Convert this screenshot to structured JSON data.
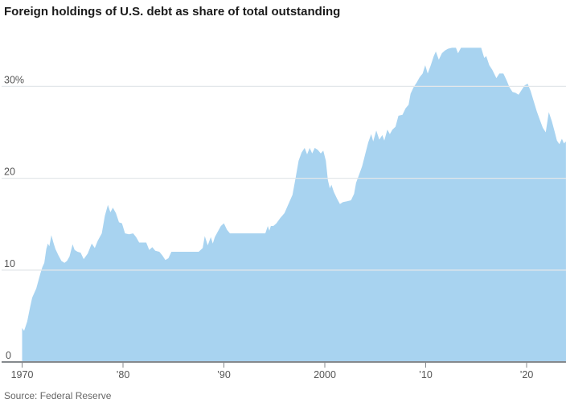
{
  "page": {
    "title": "Foreign holdings of U.S. debt as share of total outstanding",
    "source": "Source: Federal Reserve"
  },
  "colors": {
    "background": "#ffffff",
    "area_fill": "#a8d3f0",
    "gridline": "#e3e7ea",
    "axis_line": "#85898d",
    "tick_mark": "#85898d",
    "tick_label": "#555555",
    "title_text": "#1b1b1b",
    "source_text": "#666666"
  },
  "chart_data": {
    "type": "area",
    "title": "Foreign holdings of U.S. debt as share of total outstanding",
    "xlabel": "",
    "ylabel": "",
    "grid": true,
    "legend": false,
    "x_range": [
      1970,
      2023.9
    ],
    "ylim": [
      0,
      35
    ],
    "y_ticks": [
      {
        "value": 0,
        "label": "0"
      },
      {
        "value": 10,
        "label": "10"
      },
      {
        "value": 20,
        "label": "20"
      },
      {
        "value": 30,
        "label": "30%"
      }
    ],
    "x_ticks": [
      {
        "year": 1970,
        "label": "1970"
      },
      {
        "year": 1980,
        "label": "’80"
      },
      {
        "year": 1990,
        "label": "’90"
      },
      {
        "year": 2000,
        "label": "2000"
      },
      {
        "year": 2010,
        "label": "’10"
      },
      {
        "year": 2020,
        "label": "’20"
      }
    ],
    "series": [
      {
        "name": "Foreign holdings share of total U.S. debt outstanding (%)",
        "points": [
          [
            1970.0,
            3.7
          ],
          [
            1970.2,
            3.4
          ],
          [
            1970.5,
            4.4
          ],
          [
            1970.8,
            6.0
          ],
          [
            1971.0,
            7.0
          ],
          [
            1971.4,
            8.0
          ],
          [
            1971.8,
            9.6
          ],
          [
            1972.0,
            10.3
          ],
          [
            1972.2,
            10.8
          ],
          [
            1972.4,
            12.3
          ],
          [
            1972.55,
            12.9
          ],
          [
            1972.7,
            12.6
          ],
          [
            1972.9,
            13.8
          ],
          [
            1973.1,
            13.0
          ],
          [
            1973.3,
            12.3
          ],
          [
            1973.6,
            11.6
          ],
          [
            1973.9,
            11.0
          ],
          [
            1974.2,
            10.8
          ],
          [
            1974.45,
            11.0
          ],
          [
            1974.7,
            11.5
          ],
          [
            1975.0,
            12.8
          ],
          [
            1975.2,
            12.2
          ],
          [
            1975.5,
            12.0
          ],
          [
            1975.8,
            11.9
          ],
          [
            1976.1,
            11.2
          ],
          [
            1976.5,
            11.8
          ],
          [
            1976.9,
            12.9
          ],
          [
            1977.2,
            12.4
          ],
          [
            1977.5,
            13.2
          ],
          [
            1977.9,
            14.0
          ],
          [
            1978.2,
            15.9
          ],
          [
            1978.5,
            17.1
          ],
          [
            1978.75,
            16.3
          ],
          [
            1979.0,
            16.8
          ],
          [
            1979.3,
            16.2
          ],
          [
            1979.6,
            15.2
          ],
          [
            1979.9,
            15.1
          ],
          [
            1980.2,
            14.0
          ],
          [
            1980.6,
            13.9
          ],
          [
            1981.0,
            14.0
          ],
          [
            1981.3,
            13.6
          ],
          [
            1981.6,
            13.0
          ],
          [
            1982.0,
            13.0
          ],
          [
            1982.3,
            13.0
          ],
          [
            1982.6,
            12.2
          ],
          [
            1982.9,
            12.5
          ],
          [
            1983.2,
            12.1
          ],
          [
            1983.6,
            12.0
          ],
          [
            1983.9,
            11.6
          ],
          [
            1984.2,
            11.1
          ],
          [
            1984.5,
            11.3
          ],
          [
            1984.8,
            12.0
          ],
          [
            1985.5,
            12.0
          ],
          [
            1986.5,
            12.0
          ],
          [
            1987.5,
            12.0
          ],
          [
            1987.9,
            12.4
          ],
          [
            1988.1,
            13.7
          ],
          [
            1988.4,
            12.7
          ],
          [
            1988.7,
            13.6
          ],
          [
            1988.9,
            12.9
          ],
          [
            1989.1,
            13.6
          ],
          [
            1989.4,
            14.2
          ],
          [
            1989.7,
            14.8
          ],
          [
            1990.0,
            15.1
          ],
          [
            1990.3,
            14.4
          ],
          [
            1990.6,
            14.0
          ],
          [
            1991.0,
            14.0
          ],
          [
            1992.0,
            14.0
          ],
          [
            1993.0,
            14.0
          ],
          [
            1994.1,
            14.0
          ],
          [
            1994.35,
            14.8
          ],
          [
            1994.5,
            14.3
          ],
          [
            1994.65,
            14.8
          ],
          [
            1994.9,
            14.8
          ],
          [
            1995.2,
            15.1
          ],
          [
            1995.6,
            15.7
          ],
          [
            1996.0,
            16.2
          ],
          [
            1996.4,
            17.2
          ],
          [
            1996.8,
            18.2
          ],
          [
            1997.1,
            20.0
          ],
          [
            1997.4,
            21.9
          ],
          [
            1997.7,
            22.8
          ],
          [
            1998.0,
            23.3
          ],
          [
            1998.25,
            22.6
          ],
          [
            1998.5,
            23.3
          ],
          [
            1998.75,
            22.7
          ],
          [
            1999.0,
            23.3
          ],
          [
            1999.3,
            23.1
          ],
          [
            1999.6,
            22.7
          ],
          [
            1999.85,
            23.0
          ],
          [
            2000.1,
            21.9
          ],
          [
            2000.3,
            19.8
          ],
          [
            2000.5,
            18.9
          ],
          [
            2000.65,
            19.3
          ],
          [
            2000.9,
            18.5
          ],
          [
            2001.2,
            17.8
          ],
          [
            2001.5,
            17.2
          ],
          [
            2001.8,
            17.4
          ],
          [
            2002.2,
            17.5
          ],
          [
            2002.6,
            17.6
          ],
          [
            2002.9,
            18.3
          ],
          [
            2003.1,
            19.5
          ],
          [
            2003.4,
            20.4
          ],
          [
            2003.7,
            21.3
          ],
          [
            2004.0,
            22.6
          ],
          [
            2004.3,
            23.9
          ],
          [
            2004.6,
            24.8
          ],
          [
            2004.8,
            24.0
          ],
          [
            2005.1,
            25.2
          ],
          [
            2005.4,
            24.2
          ],
          [
            2005.7,
            24.7
          ],
          [
            2005.9,
            24.1
          ],
          [
            2006.2,
            25.3
          ],
          [
            2006.45,
            24.8
          ],
          [
            2006.7,
            25.3
          ],
          [
            2007.0,
            25.6
          ],
          [
            2007.3,
            26.8
          ],
          [
            2007.7,
            26.9
          ],
          [
            2008.0,
            27.6
          ],
          [
            2008.3,
            28.0
          ],
          [
            2008.5,
            29.2
          ],
          [
            2008.8,
            29.9
          ],
          [
            2009.1,
            30.4
          ],
          [
            2009.4,
            31.0
          ],
          [
            2009.7,
            31.4
          ],
          [
            2009.95,
            32.3
          ],
          [
            2010.2,
            31.4
          ],
          [
            2010.5,
            32.3
          ],
          [
            2010.8,
            33.3
          ],
          [
            2011.0,
            33.8
          ],
          [
            2011.3,
            32.9
          ],
          [
            2011.6,
            33.6
          ],
          [
            2011.9,
            33.9
          ],
          [
            2012.2,
            34.1
          ],
          [
            2012.6,
            34.2
          ],
          [
            2013.0,
            34.2
          ],
          [
            2013.2,
            33.6
          ],
          [
            2013.5,
            34.2
          ],
          [
            2014.0,
            34.2
          ],
          [
            2014.5,
            34.2
          ],
          [
            2015.0,
            34.2
          ],
          [
            2015.5,
            34.2
          ],
          [
            2015.8,
            33.1
          ],
          [
            2016.0,
            33.3
          ],
          [
            2016.3,
            32.3
          ],
          [
            2016.6,
            31.8
          ],
          [
            2017.0,
            30.9
          ],
          [
            2017.3,
            31.4
          ],
          [
            2017.7,
            31.4
          ],
          [
            2018.0,
            30.7
          ],
          [
            2018.3,
            29.9
          ],
          [
            2018.6,
            29.4
          ],
          [
            2018.9,
            29.3
          ],
          [
            2019.2,
            29.1
          ],
          [
            2019.5,
            29.6
          ],
          [
            2019.8,
            30.1
          ],
          [
            2020.1,
            30.3
          ],
          [
            2020.4,
            29.5
          ],
          [
            2020.7,
            28.4
          ],
          [
            2021.0,
            27.3
          ],
          [
            2021.3,
            26.4
          ],
          [
            2021.6,
            25.5
          ],
          [
            2021.9,
            25.0
          ],
          [
            2022.2,
            27.2
          ],
          [
            2022.5,
            26.2
          ],
          [
            2022.8,
            25.0
          ],
          [
            2023.0,
            24.1
          ],
          [
            2023.25,
            23.7
          ],
          [
            2023.5,
            24.3
          ],
          [
            2023.7,
            23.8
          ],
          [
            2023.9,
            24.0
          ]
        ]
      }
    ]
  }
}
